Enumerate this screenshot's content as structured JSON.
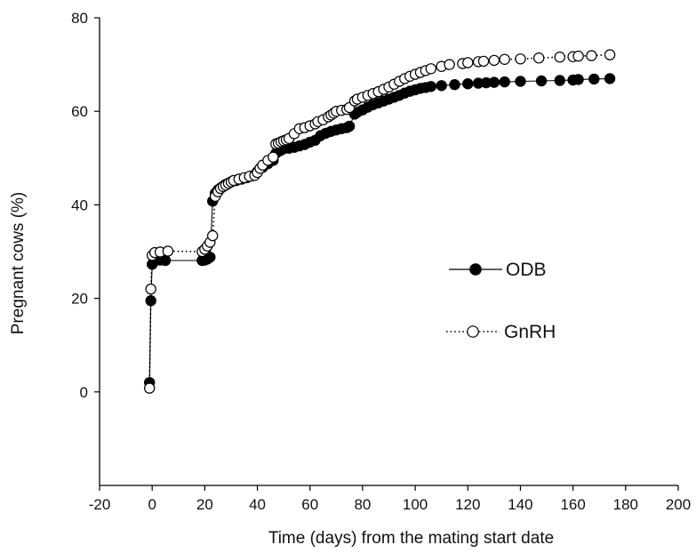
{
  "chart_data": {
    "type": "line",
    "xlabel": "Time (days) from the mating start date",
    "ylabel": "Pregnant cows (%)",
    "xlim": [
      -20,
      200
    ],
    "ylim": [
      -20,
      80
    ],
    "x_ticks": [
      -20,
      0,
      20,
      40,
      60,
      80,
      100,
      120,
      140,
      160,
      180,
      200
    ],
    "y_ticks": [
      0,
      20,
      40,
      60,
      80
    ],
    "grid": false,
    "legend_position": "right-middle",
    "series": [
      {
        "name": "ODB",
        "line_style": "solid",
        "marker": "filled-circle",
        "color": "#000000",
        "x": [
          -1,
          -0.5,
          0,
          1,
          3,
          5,
          19,
          20,
          21,
          22,
          23,
          24,
          25,
          26,
          27,
          28,
          29,
          30,
          32,
          34,
          36,
          38,
          40,
          42,
          44,
          46,
          47,
          48,
          49,
          50,
          52,
          54,
          56,
          58,
          60,
          62,
          64,
          66,
          68,
          70,
          72,
          74,
          75,
          77,
          78,
          80,
          82,
          84,
          86,
          88,
          90,
          92,
          94,
          96,
          98,
          100,
          102,
          104,
          106,
          110,
          115,
          120,
          124,
          127,
          130,
          134,
          140,
          148,
          155,
          160,
          162,
          168,
          174
        ],
        "values": [
          2,
          19.5,
          27.3,
          28,
          28.2,
          28.1,
          28.1,
          28.2,
          28.4,
          28.8,
          40.8,
          42.5,
          43.2,
          43.6,
          44,
          44.4,
          44.6,
          44.9,
          45.2,
          45.5,
          45.8,
          46.2,
          47.1,
          48,
          48.8,
          49.5,
          51,
          51.4,
          51.7,
          52,
          52.1,
          52.3,
          52.6,
          52.9,
          53.4,
          53.8,
          54.8,
          55.3,
          55.7,
          56,
          56.3,
          56.5,
          56.8,
          59.4,
          59.8,
          60.3,
          60.9,
          61.4,
          61.8,
          62.2,
          62.6,
          63,
          63.4,
          63.9,
          64.3,
          64.6,
          64.9,
          65.1,
          65.3,
          65.5,
          65.7,
          65.9,
          66,
          66.1,
          66.2,
          66.3,
          66.4,
          66.5,
          66.6,
          66.7,
          66.8,
          66.9,
          67
        ]
      },
      {
        "name": "GnRH",
        "line_style": "dotted",
        "marker": "open-circle",
        "color": "#000000",
        "x": [
          -1,
          -0.5,
          0,
          1,
          3,
          6,
          19,
          20,
          21,
          22,
          23,
          24,
          25,
          26,
          27,
          28,
          29,
          30,
          31,
          33,
          35,
          37,
          39,
          40,
          41,
          42,
          44,
          46,
          47,
          48,
          49,
          50,
          51,
          52,
          54,
          56,
          58,
          60,
          62,
          63,
          65,
          67,
          68,
          69,
          70,
          72,
          74,
          75,
          77,
          78,
          80,
          82,
          84,
          86,
          88,
          90,
          92,
          94,
          96,
          98,
          100,
          102,
          104,
          106,
          110,
          113,
          118,
          120,
          124,
          126,
          130,
          134,
          140,
          147,
          155,
          160,
          162,
          167,
          174
        ],
        "values": [
          0.8,
          22,
          29.2,
          29.8,
          29.9,
          30.1,
          30,
          30.5,
          31.2,
          32,
          33.4,
          41.8,
          42.8,
          43.5,
          43.9,
          44.2,
          44.6,
          44.9,
          45.2,
          45.5,
          45.8,
          46.1,
          46.3,
          46.9,
          47.8,
          48.5,
          49.5,
          50.2,
          53,
          53.2,
          53.5,
          53.7,
          53.9,
          54.2,
          55.2,
          56.3,
          56.5,
          56.9,
          57.3,
          57.8,
          58.2,
          58.8,
          59.2,
          59.6,
          60,
          60.2,
          60.4,
          60.8,
          62.2,
          62.6,
          63,
          63.4,
          63.8,
          64.2,
          64.7,
          65.2,
          65.8,
          66.4,
          67,
          67.5,
          67.9,
          68.3,
          68.7,
          69.1,
          69.6,
          70,
          70.2,
          70.4,
          70.6,
          70.7,
          70.9,
          71.1,
          71.2,
          71.4,
          71.6,
          71.7,
          71.8,
          71.9,
          72.1
        ]
      }
    ]
  }
}
